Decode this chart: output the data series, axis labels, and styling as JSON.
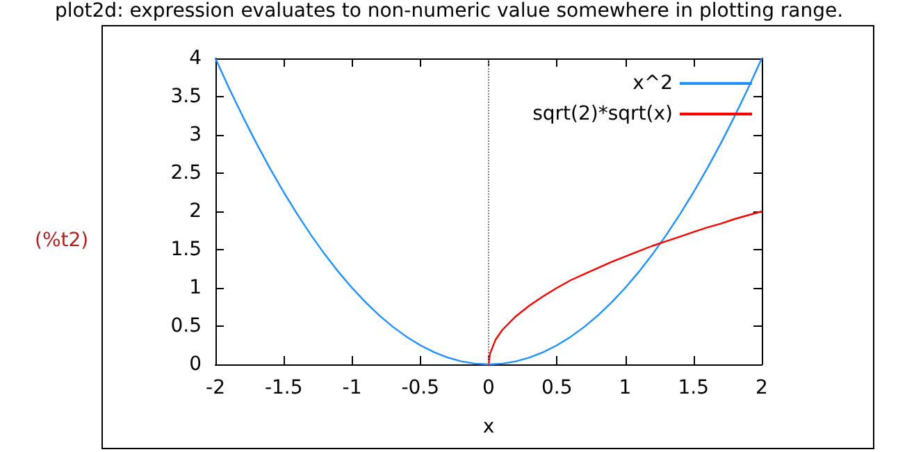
{
  "chart_data": {
    "type": "line",
    "title": "plot2d: expression evaluates to non-numeric value somewhere in plotting range.",
    "xlabel": "x",
    "annotations": [
      "(%t2)"
    ],
    "series": [
      {
        "name": "x^2",
        "color": "#1e90ff",
        "x": [
          -2,
          -1.9,
          -1.8,
          -1.7,
          -1.6,
          -1.5,
          -1.4,
          -1.3,
          -1.2,
          -1.1,
          -1,
          -0.9,
          -0.8,
          -0.7,
          -0.6,
          -0.5,
          -0.4,
          -0.3,
          -0.2,
          -0.1,
          0,
          0.1,
          0.2,
          0.3,
          0.4,
          0.5,
          0.6,
          0.7,
          0.8,
          0.9,
          1,
          1.1,
          1.2,
          1.3,
          1.4,
          1.5,
          1.6,
          1.7,
          1.8,
          1.9,
          2
        ],
        "values": [
          4,
          3.61,
          3.24,
          2.89,
          2.56,
          2.25,
          1.96,
          1.69,
          1.44,
          1.21,
          1,
          0.81,
          0.64,
          0.49,
          0.36,
          0.25,
          0.16,
          0.09,
          0.04,
          0.01,
          0,
          0.01,
          0.04,
          0.09,
          0.16,
          0.25,
          0.36,
          0.49,
          0.64,
          0.81,
          1,
          1.21,
          1.44,
          1.69,
          1.96,
          2.25,
          2.56,
          2.89,
          3.24,
          3.61,
          4
        ]
      },
      {
        "name": "sqrt(2)*sqrt(x)",
        "color": "#ff0000",
        "x": [
          0,
          0.01,
          0.05,
          0.1,
          0.2,
          0.3,
          0.4,
          0.5,
          0.6,
          0.7,
          0.8,
          0.9,
          1,
          1.1,
          1.2,
          1.3,
          1.4,
          1.5,
          1.6,
          1.7,
          1.8,
          1.9,
          2
        ],
        "values": [
          0,
          0.14,
          0.32,
          0.45,
          0.63,
          0.77,
          0.89,
          1,
          1.1,
          1.18,
          1.26,
          1.34,
          1.41,
          1.48,
          1.55,
          1.61,
          1.67,
          1.73,
          1.79,
          1.84,
          1.9,
          1.95,
          2
        ]
      }
    ],
    "xlim": [
      -2,
      2
    ],
    "xticks": [
      -2,
      -1.5,
      -1,
      -0.5,
      0,
      0.5,
      1,
      1.5,
      2
    ],
    "ylim": [
      0,
      4
    ],
    "yticks": [
      0,
      0.5,
      1,
      1.5,
      2,
      2.5,
      3,
      3.5,
      4
    ],
    "ref_lines": [
      {
        "axis": "x",
        "value": 0,
        "color": "#808080",
        "line_style": "dotted"
      }
    ],
    "grid": false,
    "legend": "top right",
    "marker": "none",
    "line_style": "solid"
  }
}
